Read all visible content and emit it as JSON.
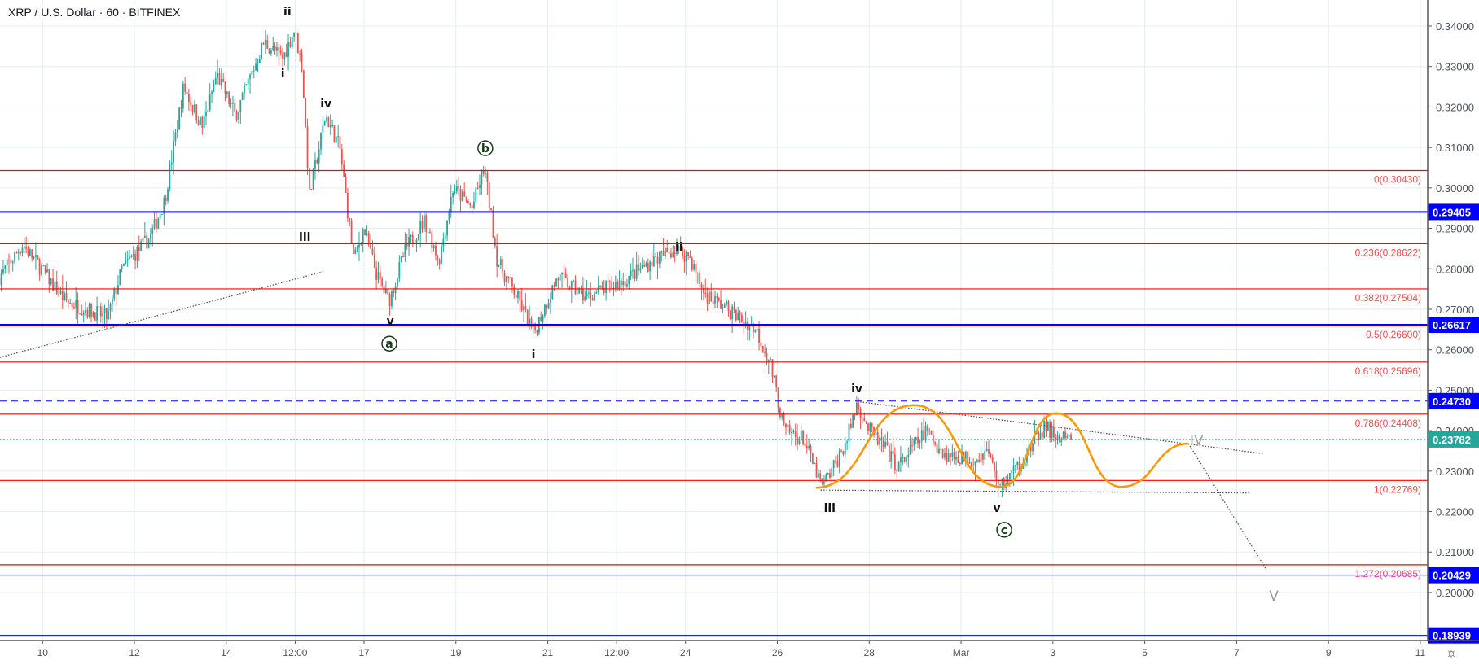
{
  "header": {
    "title": "XRP / U.S. Dollar · 60 · BITFINEX"
  },
  "colors": {
    "up": "#26a69a",
    "down": "#ef5350",
    "fib": "#ff0000",
    "fib_text": "#ff4a4a",
    "blue": "#0000ff",
    "current": "#26a69a",
    "projection": "#ff9800",
    "grid": "#e6edf3"
  },
  "chart_data": {
    "type": "candlestick",
    "symbol": "XRP / U.S. Dollar",
    "interval": "60",
    "exchange": "BITFINEX",
    "ylim": [
      0.1875,
      0.3462
    ],
    "xlim_day": [
      9.07,
      40.17
    ],
    "x_day_note": "day index in February 2020; Mar 1 = 30",
    "y_ticks": [
      "0.34000",
      "0.33000",
      "0.32000",
      "0.31000",
      "0.30000",
      "0.29000",
      "0.28000",
      "0.27000",
      "0.26000",
      "0.25000",
      "0.24000",
      "0.23000",
      "0.22000",
      "0.21000",
      "0.20000"
    ],
    "x_ticks": [
      {
        "day": 10,
        "label": "10"
      },
      {
        "day": 12,
        "label": "12"
      },
      {
        "day": 14,
        "label": "14"
      },
      {
        "day": 15.5,
        "label": "12:00"
      },
      {
        "day": 17,
        "label": "17"
      },
      {
        "day": 19,
        "label": "19"
      },
      {
        "day": 21,
        "label": "21"
      },
      {
        "day": 22.5,
        "label": "12:00"
      },
      {
        "day": 24,
        "label": "24"
      },
      {
        "day": 26,
        "label": "26"
      },
      {
        "day": 28,
        "label": "28"
      },
      {
        "day": 30,
        "label": "Mar"
      },
      {
        "day": 32,
        "label": "3"
      },
      {
        "day": 34,
        "label": "5"
      },
      {
        "day": 36,
        "label": "7"
      },
      {
        "day": 38,
        "label": "9"
      },
      {
        "day": 40,
        "label": "11"
      }
    ],
    "price_path": [
      [
        9.06,
        0.278
      ],
      [
        9.57,
        0.286
      ],
      [
        10.5,
        0.272
      ],
      [
        11.42,
        0.268
      ],
      [
        11.73,
        0.28
      ],
      [
        12.35,
        0.288
      ],
      [
        12.66,
        0.297
      ],
      [
        13.07,
        0.325
      ],
      [
        13.48,
        0.315
      ],
      [
        13.79,
        0.328
      ],
      [
        14.2,
        0.318
      ],
      [
        14.82,
        0.336
      ],
      [
        15.23,
        0.332
      ],
      [
        15.48,
        0.339
      ],
      [
        15.65,
        0.33
      ],
      [
        15.81,
        0.298
      ],
      [
        16.16,
        0.318
      ],
      [
        16.47,
        0.31
      ],
      [
        16.78,
        0.282
      ],
      [
        16.99,
        0.29
      ],
      [
        17.29,
        0.278
      ],
      [
        17.54,
        0.272
      ],
      [
        17.91,
        0.285
      ],
      [
        18.32,
        0.292
      ],
      [
        18.63,
        0.282
      ],
      [
        18.94,
        0.3
      ],
      [
        19.35,
        0.295
      ],
      [
        19.62,
        0.305
      ],
      [
        19.9,
        0.282
      ],
      [
        20.38,
        0.272
      ],
      [
        20.69,
        0.264
      ],
      [
        21.21,
        0.278
      ],
      [
        21.83,
        0.273
      ],
      [
        22.65,
        0.277
      ],
      [
        23.27,
        0.282
      ],
      [
        23.78,
        0.285
      ],
      [
        24.09,
        0.283
      ],
      [
        24.4,
        0.274
      ],
      [
        24.92,
        0.27
      ],
      [
        25.53,
        0.265
      ],
      [
        25.84,
        0.257
      ],
      [
        26.15,
        0.24
      ],
      [
        26.56,
        0.238
      ],
      [
        26.97,
        0.226
      ],
      [
        27.18,
        0.23
      ],
      [
        27.49,
        0.237
      ],
      [
        27.74,
        0.247
      ],
      [
        28.0,
        0.24
      ],
      [
        28.31,
        0.236
      ],
      [
        28.62,
        0.231
      ],
      [
        29.24,
        0.24
      ],
      [
        29.65,
        0.234
      ],
      [
        30.27,
        0.233
      ],
      [
        30.58,
        0.235
      ],
      [
        30.85,
        0.226
      ],
      [
        31.3,
        0.232
      ],
      [
        31.82,
        0.241
      ],
      [
        32.1,
        0.238
      ],
      [
        32.4,
        0.23782
      ]
    ],
    "fib_levels": [
      {
        "label": "0(0.30430)",
        "price": 0.3043
      },
      {
        "label": "0.236(0.28622)",
        "price": 0.28622
      },
      {
        "label": "0.382(0.27504)",
        "price": 0.27504
      },
      {
        "label": "0.5(0.26600)",
        "price": 0.266
      },
      {
        "label": "0.618(0.25696)",
        "price": 0.25696
      },
      {
        "label": "0.786(0.24408)",
        "price": 0.24408
      },
      {
        "label": "1(0.22769)",
        "price": 0.22769
      },
      {
        "label": "1.272(0.20685)",
        "price": 0.20685
      }
    ],
    "horizontal_lines": [
      {
        "label": "0.29405",
        "price": 0.29405,
        "style": "solid",
        "weight": 2
      },
      {
        "label": "0.26617",
        "price": 0.26617,
        "style": "solid",
        "weight": 2
      },
      {
        "label": "0.24730",
        "price": 0.2473,
        "style": "dashed",
        "weight": 1
      },
      {
        "label": "0.20429",
        "price": 0.20429,
        "style": "solid",
        "weight": 1
      },
      {
        "label": "0.18939",
        "price": 0.18939,
        "style": "solid",
        "weight": 1
      }
    ],
    "current_price": {
      "label": "0.23782",
      "price": 0.23782
    },
    "wave_labels": [
      {
        "text": "ii",
        "day": 15.33,
        "price": 0.3436
      },
      {
        "text": "i",
        "day": 15.23,
        "price": 0.3283
      },
      {
        "text": "iv",
        "day": 16.17,
        "price": 0.3209
      },
      {
        "text": "iii",
        "day": 15.71,
        "price": 0.2879
      },
      {
        "text": "v",
        "day": 17.57,
        "price": 0.2672
      },
      {
        "text": "a",
        "day": 17.55,
        "price": 0.2615,
        "circled": true
      },
      {
        "text": "b",
        "day": 19.64,
        "price": 0.3098,
        "circled": true
      },
      {
        "text": "i",
        "day": 20.69,
        "price": 0.2589
      },
      {
        "text": "ii",
        "day": 23.86,
        "price": 0.2855
      },
      {
        "text": "iii",
        "day": 27.14,
        "price": 0.2209
      },
      {
        "text": "iv",
        "day": 27.73,
        "price": 0.2505
      },
      {
        "text": "v",
        "day": 30.78,
        "price": 0.2209
      },
      {
        "text": "c",
        "day": 30.94,
        "price": 0.2155,
        "circled": true
      },
      {
        "text": "IV",
        "day": 35.13,
        "price": 0.2375,
        "muted": true
      },
      {
        "text": "V",
        "day": 36.81,
        "price": 0.199,
        "muted": true
      }
    ],
    "projection_path": [
      [
        26.84,
        0.2259
      ],
      [
        28.98,
        0.2463
      ],
      [
        30.87,
        0.2261
      ],
      [
        32.07,
        0.2443
      ],
      [
        33.49,
        0.2261
      ],
      [
        34.95,
        0.2368
      ]
    ],
    "trend_lines": [
      {
        "name": "rising-support",
        "points": [
          [
            9.07,
            0.2581
          ],
          [
            16.11,
            0.2793
          ]
        ]
      },
      {
        "name": "descending-resistance",
        "points": [
          [
            27.74,
            0.2472
          ],
          [
            36.59,
            0.2343
          ]
        ]
      },
      {
        "name": "flat-support",
        "points": [
          [
            26.94,
            0.2253
          ],
          [
            36.29,
            0.2246
          ]
        ]
      },
      {
        "name": "projected-drop",
        "points": [
          [
            34.95,
            0.2368
          ],
          [
            36.65,
            0.2056
          ]
        ]
      }
    ]
  }
}
